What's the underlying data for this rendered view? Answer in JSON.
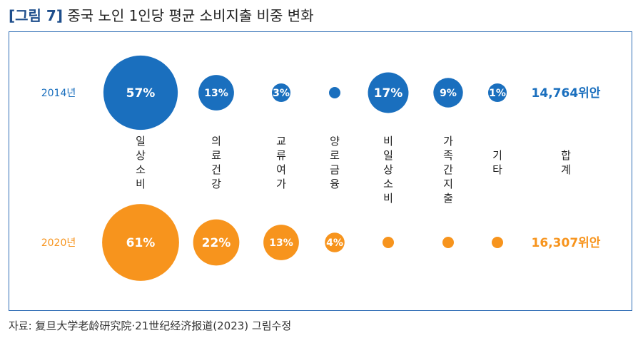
{
  "figure": {
    "label": "[그림 7]",
    "title": "중국 노인 1인당 평균 소비지출 비중 변화"
  },
  "source": "자료: 复旦大学老龄研究院·21世纪经济报道(2023) 그림수정",
  "chart_data": {
    "type": "bubble",
    "categories": [
      "일상소비",
      "의료건강",
      "교류여가",
      "양로금융",
      "비일상소비",
      "가족간지출",
      "기타"
    ],
    "total_label": "합계",
    "series": [
      {
        "name": "2014년",
        "color": "#1a6fbe",
        "values": [
          57,
          13,
          3,
          null,
          17,
          9,
          1
        ],
        "labels": [
          "57%",
          "13%",
          "3%",
          "",
          "17%",
          "9%",
          "1%"
        ],
        "total": "14,764위안"
      },
      {
        "name": "2020년",
        "color": "#f7941d",
        "values": [
          61,
          22,
          13,
          4,
          null,
          null,
          null
        ],
        "labels": [
          "61%",
          "22%",
          "13%",
          "4%",
          "",
          "",
          ""
        ],
        "total": "16,307위안"
      }
    ]
  }
}
